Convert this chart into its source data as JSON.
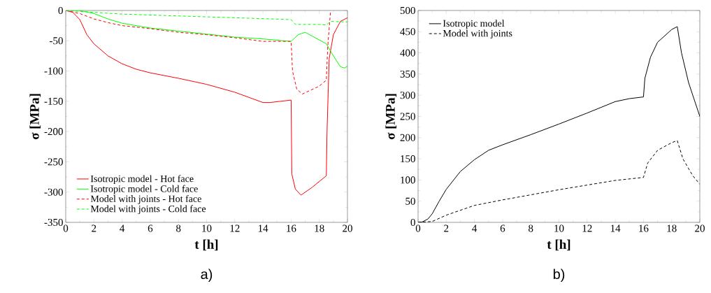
{
  "chart_data": [
    {
      "type": "line",
      "xlabel": "t [h]",
      "ylabel": "σ [MPa]",
      "annotations": [
        "a)"
      ],
      "xlim": [
        0,
        20
      ],
      "ylim": [
        -350,
        0
      ],
      "xticks": [
        0,
        2,
        4,
        6,
        8,
        10,
        12,
        14,
        16,
        18,
        20
      ],
      "yticks": [
        -350,
        -300,
        -250,
        -200,
        -150,
        -100,
        -50,
        0
      ],
      "legend": "bottom left",
      "series": [
        {
          "name": "Isotropic model - Hot face",
          "color": "#ff0000",
          "line_style": "solid",
          "x": [
            0,
            0.5,
            1,
            1.5,
            2,
            3,
            4,
            5,
            6,
            8,
            10,
            12,
            14,
            14.5,
            16,
            16.05,
            16.3,
            16.7,
            17.5,
            18.5,
            18.55,
            18.7,
            19,
            19.5,
            20
          ],
          "values": [
            0,
            -3,
            -15,
            -40,
            -55,
            -75,
            -88,
            -97,
            -103,
            -112,
            -122,
            -135,
            -152,
            -152,
            -148,
            -270,
            -295,
            -305,
            -292,
            -273,
            -200,
            -80,
            -40,
            -18,
            -12
          ]
        },
        {
          "name": "Isotropic model - Cold face",
          "color": "#00ff00",
          "line_style": "solid",
          "x": [
            0,
            1,
            2,
            3,
            4,
            6,
            8,
            10,
            12,
            14,
            16,
            16.5,
            17,
            18.5,
            19,
            19.5,
            19.8,
            20
          ],
          "values": [
            0,
            0,
            -5,
            -14,
            -21,
            -29,
            -34,
            -39,
            -44,
            -47,
            -51,
            -40,
            -36,
            -55,
            -75,
            -93,
            -95,
            -92
          ]
        },
        {
          "name": "Model with joints - Hot face",
          "color": "#ff0000",
          "line_style": "dashed",
          "x": [
            0,
            1,
            2,
            3,
            4,
            6,
            8,
            10,
            12,
            14,
            16,
            16.1,
            16.4,
            16.8,
            18,
            18.5,
            18.6,
            18.8
          ],
          "values": [
            0,
            -5,
            -14,
            -20,
            -25,
            -30,
            -36,
            -40,
            -45,
            -51,
            -51,
            -100,
            -130,
            -138,
            -125,
            -115,
            -60,
            0
          ]
        },
        {
          "name": "Model with joints - Cold face",
          "color": "#00ff00",
          "line_style": "dashed",
          "x": [
            0,
            2,
            4,
            8,
            12,
            16,
            16.3,
            18,
            18.5,
            18.8,
            20
          ],
          "values": [
            0,
            -3,
            -6,
            -9,
            -12,
            -15,
            -23,
            -23,
            -24,
            -18,
            -19
          ]
        }
      ]
    },
    {
      "type": "line",
      "xlabel": "t [h]",
      "ylabel": "σ [MPa]",
      "annotations": [
        "b)"
      ],
      "xlim": [
        0,
        20
      ],
      "ylim": [
        0,
        500
      ],
      "xticks": [
        0,
        2,
        4,
        6,
        8,
        10,
        12,
        14,
        16,
        18,
        20
      ],
      "yticks": [
        0,
        50,
        100,
        150,
        200,
        250,
        300,
        350,
        400,
        450,
        500
      ],
      "legend": "top left",
      "series": [
        {
          "name": "Isotropic model",
          "color": "#000000",
          "line_style": "solid",
          "x": [
            0,
            0.3,
            0.7,
            1,
            1.5,
            2,
            3,
            4,
            5,
            6,
            8,
            10,
            12,
            14,
            15,
            16,
            16.1,
            16.5,
            17,
            18,
            18.4,
            18.7,
            19.2,
            20
          ],
          "values": [
            0,
            1,
            8,
            20,
            50,
            78,
            120,
            148,
            170,
            183,
            207,
            232,
            258,
            285,
            292,
            296,
            340,
            390,
            425,
            455,
            462,
            400,
            330,
            250
          ]
        },
        {
          "name": "Model with joints",
          "color": "#000000",
          "line_style": "dashed",
          "x": [
            0,
            1,
            2,
            4,
            6,
            8,
            10,
            12,
            14,
            16,
            16.3,
            17,
            18,
            18.4,
            18.8,
            19.5,
            20
          ],
          "values": [
            0,
            2,
            17,
            40,
            53,
            65,
            77,
            88,
            99,
            106,
            140,
            170,
            188,
            193,
            150,
            110,
            90
          ]
        }
      ]
    }
  ]
}
